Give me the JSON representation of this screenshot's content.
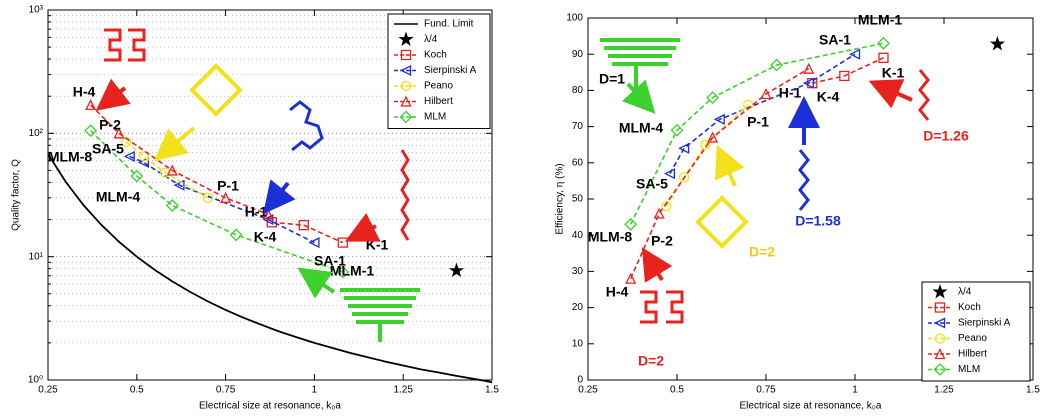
{
  "chart_data": [
    {
      "type": "line",
      "log_y": true,
      "grid": true,
      "minor_grid": true,
      "legend": "upper right",
      "x_label": "Electrical size at resonance, k₀a",
      "y_label": "Quality factor, Q",
      "xlim": [
        0.25,
        1.5
      ],
      "xticks": [
        0.25,
        0.5,
        0.75,
        1,
        1.25,
        1.5
      ],
      "ylim": [
        1,
        1000
      ],
      "yticks": [
        {
          "value": 1,
          "label": "10⁰"
        },
        {
          "value": 10,
          "label": "10¹"
        },
        {
          "value": 100,
          "label": "10²"
        },
        {
          "value": 1000,
          "label": "10³"
        }
      ],
      "series": [
        {
          "name": "Fund. Limit",
          "color": "#000000",
          "marker": "none",
          "dash": false,
          "x": [
            0.25,
            0.3,
            0.35,
            0.4,
            0.45,
            0.5,
            0.55,
            0.6,
            0.65,
            0.7,
            0.75,
            0.8,
            0.85,
            0.9,
            0.95,
            1,
            1.05,
            1.1,
            1.15,
            1.2,
            1.25,
            1.3,
            1.35,
            1.4,
            1.45,
            1.5
          ],
          "values": [
            68,
            40.37,
            26.18,
            18.13,
            13.19,
            10,
            7.83,
            6.3,
            5.18,
            4.34,
            3.7,
            3.2,
            2.81,
            2.48,
            2.22,
            2,
            1.82,
            1.66,
            1.53,
            1.41,
            1.31,
            1.22,
            1.15,
            1.08,
            1.02,
            0.96
          ]
        },
        {
          "name": "λ/4",
          "color": "#000000",
          "marker": "star",
          "dash": null,
          "x": [
            1.4
          ],
          "values": [
            7.7
          ]
        },
        {
          "name": "Koch",
          "color": "#e8221c",
          "marker": "square",
          "dash": true,
          "x": [
            0.88,
            0.97,
            1.08
          ],
          "values": [
            19,
            18,
            13
          ]
        },
        {
          "name": "Sierpinski A",
          "color": "#1d2fd6",
          "marker": "left-triangle",
          "dash": true,
          "x": [
            0.48,
            0.52,
            0.62,
            0.87,
            1.0
          ],
          "values": [
            65,
            58,
            38,
            20,
            13
          ]
        },
        {
          "name": "Peano",
          "color": "#f2e21a",
          "marker": "circle",
          "dash": true,
          "x": [
            0.47,
            0.52,
            0.58,
            0.7
          ],
          "values": [
            85,
            65,
            48,
            30
          ]
        },
        {
          "name": "Hilbert",
          "color": "#e8221c",
          "marker": "triangle",
          "dash": true,
          "x": [
            0.37,
            0.45,
            0.6,
            0.75,
            0.87
          ],
          "values": [
            170,
            100,
            50,
            30,
            22
          ]
        },
        {
          "name": "MLM",
          "color": "#3cd12c",
          "marker": "diamond",
          "dash": true,
          "x": [
            0.37,
            0.5,
            0.6,
            0.78,
            1.08
          ],
          "values": [
            105,
            45,
            26,
            15,
            7.5
          ]
        }
      ],
      "annotations": [
        {
          "text": "H-4",
          "color": "#000000"
        },
        {
          "text": "P-2",
          "color": "#000000"
        },
        {
          "text": "SA-5",
          "color": "#000000"
        },
        {
          "text": "MLM-8",
          "color": "#000000"
        },
        {
          "text": "MLM-4",
          "color": "#000000"
        },
        {
          "text": "P-1",
          "color": "#000000"
        },
        {
          "text": "H-1",
          "color": "#000000"
        },
        {
          "text": "K-4",
          "color": "#000000"
        },
        {
          "text": "SA-1",
          "color": "#000000"
        },
        {
          "text": "K-1",
          "color": "#000000"
        },
        {
          "text": "MLM-1",
          "color": "#000000"
        }
      ]
    },
    {
      "type": "line",
      "log_y": false,
      "grid": false,
      "minor_grid": false,
      "legend": "lower right",
      "x_label": "Electrical size at resonance, k₀a",
      "y_label": "Efficiency, η (%)",
      "xlim": [
        0.25,
        1.5
      ],
      "xticks": [
        0.25,
        0.5,
        0.75,
        1,
        1.25,
        1.5
      ],
      "ylim": [
        0,
        100
      ],
      "yticks": [
        0,
        10,
        20,
        30,
        40,
        50,
        60,
        70,
        80,
        90,
        100
      ],
      "series": [
        {
          "name": "λ/4",
          "color": "#000000",
          "marker": "star",
          "dash": null,
          "x": [
            1.4
          ],
          "values": [
            92.8
          ]
        },
        {
          "name": "Koch",
          "color": "#e8221c",
          "marker": "square",
          "dash": true,
          "x": [
            0.88,
            0.97,
            1.08
          ],
          "values": [
            82,
            84,
            89
          ]
        },
        {
          "name": "Sierpinski A",
          "color": "#1d2fd6",
          "marker": "left-triangle",
          "dash": true,
          "x": [
            0.48,
            0.52,
            0.62,
            0.87,
            1.0
          ],
          "values": [
            57,
            64,
            72,
            82,
            90
          ]
        },
        {
          "name": "Peano",
          "color": "#f2e21a",
          "marker": "circle",
          "dash": true,
          "x": [
            0.47,
            0.52,
            0.58,
            0.7
          ],
          "values": [
            48,
            56,
            65,
            76
          ]
        },
        {
          "name": "Hilbert",
          "color": "#e8221c",
          "marker": "triangle",
          "dash": true,
          "x": [
            0.37,
            0.45,
            0.6,
            0.75,
            0.87
          ],
          "values": [
            28,
            46,
            67,
            79,
            86
          ]
        },
        {
          "name": "MLM",
          "color": "#3cd12c",
          "marker": "diamond",
          "dash": true,
          "x": [
            0.37,
            0.5,
            0.6,
            0.78,
            1.08
          ],
          "values": [
            43,
            69,
            78,
            87,
            93
          ]
        }
      ],
      "annotations": [
        {
          "text": "D=1",
          "color": "#000000"
        },
        {
          "text": "MLM-4",
          "color": "#000000"
        },
        {
          "text": "P-1",
          "color": "#000000"
        },
        {
          "text": "H-1",
          "color": "#000000"
        },
        {
          "text": "K-4",
          "color": "#000000"
        },
        {
          "text": "K-1",
          "color": "#000000"
        },
        {
          "text": "SA-1",
          "color": "#000000"
        },
        {
          "text": "MLM-1",
          "color": "#000000"
        },
        {
          "text": "SA-5",
          "color": "#000000"
        },
        {
          "text": "MLM-8",
          "color": "#000000"
        },
        {
          "text": "P-2",
          "color": "#000000"
        },
        {
          "text": "H-4",
          "color": "#000000"
        },
        {
          "text": "D=1.26",
          "color": "#e8221c"
        },
        {
          "text": "D=1.58",
          "color": "#1d2fd6"
        },
        {
          "text": "D=2",
          "color": "#f2c81a"
        },
        {
          "text": "D=2",
          "color": "#e8221c"
        }
      ]
    }
  ]
}
